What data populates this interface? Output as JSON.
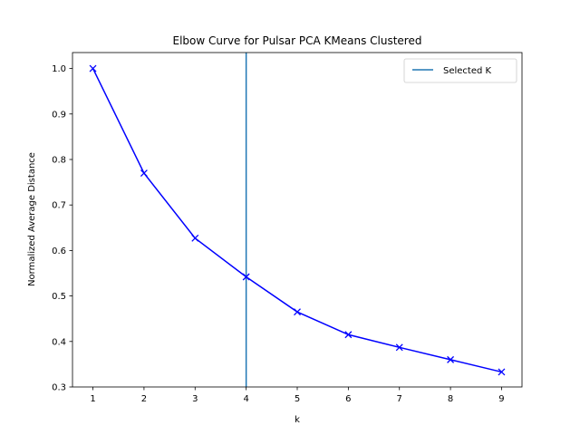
{
  "chart_data": {
    "type": "line",
    "title": "Elbow Curve for Pulsar PCA KMeans Clustered",
    "xlabel": "k",
    "ylabel": "Normalized Average Distance",
    "x": [
      1,
      2,
      3,
      4,
      5,
      6,
      7,
      8,
      9
    ],
    "series": [
      {
        "values": [
          1.0,
          0.77,
          0.627,
          0.542,
          0.465,
          0.415,
          0.387,
          0.36,
          0.333
        ],
        "color": "#0000ff",
        "marker": "x"
      }
    ],
    "vline": {
      "x": 4,
      "name": "Selected K",
      "color": "#1f77b4"
    },
    "xlim": [
      0.6,
      9.4
    ],
    "ylim": [
      0.3,
      1.035
    ],
    "xticks": [
      "1",
      "2",
      "3",
      "4",
      "5",
      "6",
      "7",
      "8",
      "9"
    ],
    "yticks": [
      "0.3",
      "0.4",
      "0.5",
      "0.6",
      "0.7",
      "0.8",
      "0.9",
      "1.0"
    ],
    "legend": {
      "location": "top-right",
      "entries": [
        "Selected K"
      ]
    },
    "grid": false
  }
}
